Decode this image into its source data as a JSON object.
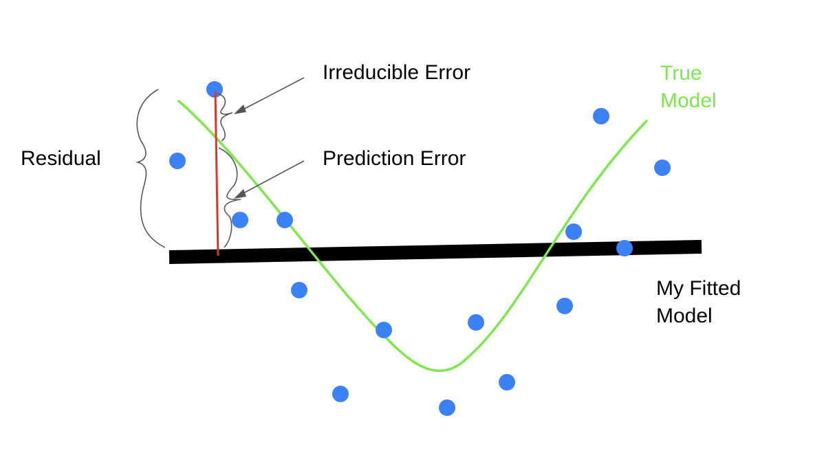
{
  "labels": {
    "irreducible_error": "Irreducible Error",
    "prediction_error": "Prediction Error",
    "residual": "Residual",
    "true_model": [
      "True",
      "Model"
    ],
    "fitted_model": [
      "My Fitted",
      "Model"
    ]
  },
  "colors": {
    "data_point": "#3b82f6",
    "true_model_curve": "#7de84a",
    "true_model_label": "#7de84a",
    "fitted_model_line": "#000000",
    "residual_line": "#e0332a",
    "annotation_stroke": "#555555",
    "text": "#000000"
  }
}
